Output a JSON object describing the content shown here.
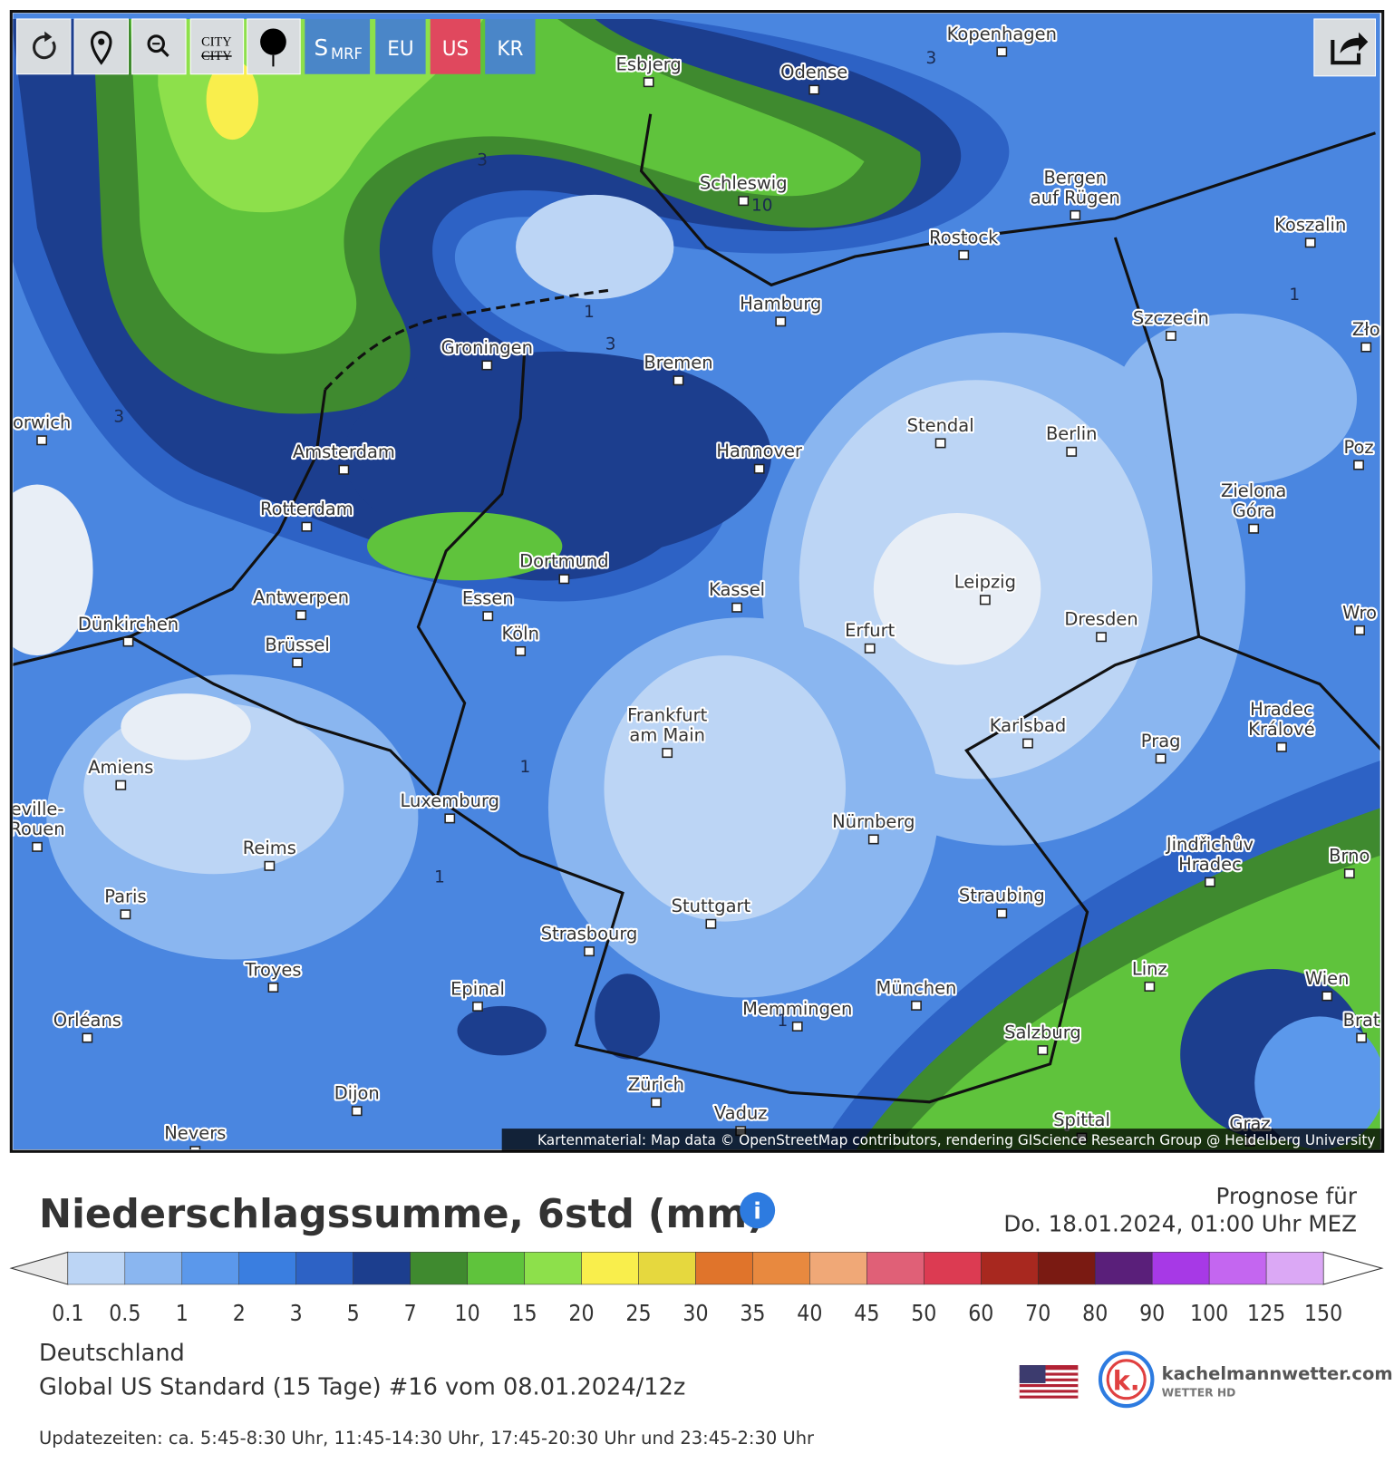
{
  "toolbar": {
    "city_top": "CITY",
    "city_struck": "CITY",
    "smrf_big": "S",
    "smrf_small": "MRF",
    "eu": "EU",
    "us": "US",
    "kr": "KR"
  },
  "map": {
    "cities": [
      [
        "Kopenhagen"
      ],
      [
        "Esbjerg"
      ],
      [
        "Odense"
      ],
      [
        "Schleswig"
      ],
      [
        "Bergen",
        "auf Rügen"
      ],
      [
        "Rostock"
      ],
      [
        "Koszalin"
      ],
      [
        "Hamburg"
      ],
      [
        "Szczecin"
      ],
      [
        "Zło"
      ],
      [
        "Groningen"
      ],
      [
        "Bremen"
      ],
      [
        "orwich"
      ],
      [
        "Stendal"
      ],
      [
        "Berlin"
      ],
      [
        "Poz"
      ],
      [
        "Amsterdam"
      ],
      [
        "Hannover"
      ],
      [
        "Zielona",
        "Góra"
      ],
      [
        "Rotterdam"
      ],
      [
        "Dortmund"
      ],
      [
        "Leipzig"
      ],
      [
        "Antwerpen"
      ],
      [
        "Essen"
      ],
      [
        "Kassel"
      ],
      [
        "Wro"
      ],
      [
        "Dünkirchen"
      ],
      [
        "Dresden"
      ],
      [
        "Erfurt"
      ],
      [
        "Köln"
      ],
      [
        "Brüssel"
      ],
      [
        "Frankfurt",
        "am Main"
      ],
      [
        "Hradec",
        "Králové"
      ],
      [
        "Karlsbad"
      ],
      [
        "Prag"
      ],
      [
        "Amiens"
      ],
      [
        "Luxemburg"
      ],
      [
        "Nürnberg"
      ],
      [
        "Reims"
      ],
      [
        "Jindřichův",
        "Hradec"
      ],
      [
        "Brno"
      ],
      [
        "Paris"
      ],
      [
        "Straubing"
      ],
      [
        "Stuttgart"
      ],
      [
        "Strasbourg"
      ],
      [
        "Troyes"
      ],
      [
        "Linz"
      ],
      [
        "Wien"
      ],
      [
        "Epinal"
      ],
      [
        "München"
      ],
      [
        "Memmingen"
      ],
      [
        "Orléans"
      ],
      [
        "Brat"
      ],
      [
        "Salzburg"
      ],
      [
        "Zürich"
      ],
      [
        "Dijon"
      ],
      [
        "Vaduz"
      ],
      [
        "Spittal"
      ],
      [
        "Graz"
      ],
      [
        "Nevers"
      ],
      [
        "eville-",
        "Rouen"
      ]
    ],
    "contour_labels": [
      "3",
      "3",
      "3",
      "3",
      "10",
      "1",
      "1",
      "1",
      "1",
      "1"
    ],
    "attribution": "Kartenmaterial: Map data © OpenStreetMap contributors, rendering GIScience Research Group @ Heidelberg University"
  },
  "legend": {
    "title": "Niederschlagssumme, 6std (mm)",
    "info": "i",
    "forecast_label": "Prognose für",
    "forecast_time": "Do. 18.01.2024, 01:00 Uhr MEZ",
    "ticks": [
      0.1,
      0.5,
      1,
      2,
      3,
      5,
      7,
      10,
      15,
      20,
      25,
      30,
      35,
      40,
      45,
      50,
      60,
      70,
      80,
      90,
      100,
      125,
      150
    ],
    "colors": [
      "#bcd5f5",
      "#8ab6f0",
      "#5b98eb",
      "#3a7ee0",
      "#2d62c5",
      "#1c3e8e",
      "#3f8a2f",
      "#5fc33c",
      "#8de04b",
      "#f9ee4c",
      "#e6d83e",
      "#e0742b",
      "#e8893f",
      "#f0a877",
      "#e06077",
      "#dc3b52",
      "#a8281f",
      "#7a1a12",
      "#5a1f7a",
      "#a739e6",
      "#c466f0",
      "#dba8f5"
    ]
  },
  "footer": {
    "region": "Deutschland",
    "model": "Global US Standard (15 Tage) #16 vom 08.01.2024/12z",
    "updates": "Updatezeiten: ca. 5:45-8:30 Uhr, 11:45-14:30 Uhr, 17:45-20:30 Uhr und 23:45-2:30 Uhr",
    "brand": "kachelmannwetter.com",
    "brand_sub": "WETTER HD",
    "logo": "k."
  }
}
